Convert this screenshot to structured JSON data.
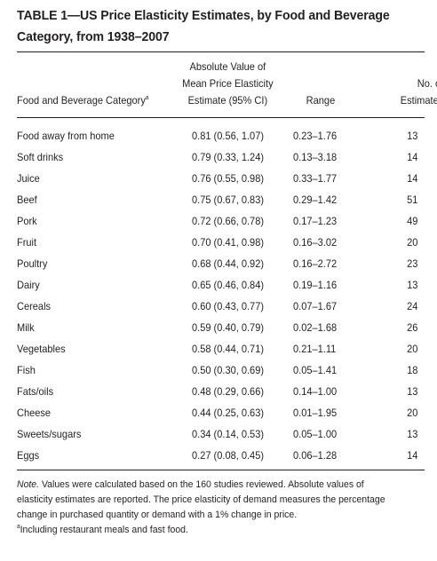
{
  "table": {
    "title_line1": "TABLE 1—US Price Elasticity Estimates, by Food and Beverage",
    "title_line2": "Category, from 1938–2007",
    "headers": {
      "category": "Food and Beverage Category",
      "category_footnote_mark": "a",
      "estimate_line1": "Absolute Value of",
      "estimate_line2": "Mean Price Elasticity",
      "estimate_line3": "Estimate (95% CI)",
      "range": "Range",
      "count_line1": "No. of",
      "count_line2": "Estimates"
    },
    "rows": [
      {
        "category": "Food away from home",
        "estimate": "0.81 (0.56, 1.07)",
        "range": "0.23–1.76",
        "count": "13"
      },
      {
        "category": "Soft drinks",
        "estimate": "0.79 (0.33, 1.24)",
        "range": "0.13–3.18",
        "count": "14"
      },
      {
        "category": "Juice",
        "estimate": "0.76 (0.55, 0.98)",
        "range": "0.33–1.77",
        "count": "14"
      },
      {
        "category": "Beef",
        "estimate": "0.75 (0.67, 0.83)",
        "range": "0.29–1.42",
        "count": "51"
      },
      {
        "category": "Pork",
        "estimate": "0.72 (0.66, 0.78)",
        "range": "0.17–1.23",
        "count": "49"
      },
      {
        "category": "Fruit",
        "estimate": "0.70 (0.41, 0.98)",
        "range": "0.16–3.02",
        "count": "20"
      },
      {
        "category": "Poultry",
        "estimate": "0.68 (0.44, 0.92)",
        "range": "0.16–2.72",
        "count": "23"
      },
      {
        "category": "Dairy",
        "estimate": "0.65 (0.46, 0.84)",
        "range": "0.19–1.16",
        "count": "13"
      },
      {
        "category": "Cereals",
        "estimate": "0.60 (0.43, 0.77)",
        "range": "0.07–1.67",
        "count": "24"
      },
      {
        "category": "Milk",
        "estimate": "0.59 (0.40, 0.79)",
        "range": "0.02–1.68",
        "count": "26"
      },
      {
        "category": "Vegetables",
        "estimate": "0.58 (0.44, 0.71)",
        "range": "0.21–1.11",
        "count": "20"
      },
      {
        "category": "Fish",
        "estimate": "0.50 (0.30, 0.69)",
        "range": "0.05–1.41",
        "count": "18"
      },
      {
        "category": "Fats/oils",
        "estimate": "0.48 (0.29, 0.66)",
        "range": "0.14–1.00",
        "count": "13"
      },
      {
        "category": "Cheese",
        "estimate": "0.44 (0.25, 0.63)",
        "range": "0.01–1.95",
        "count": "20"
      },
      {
        "category": "Sweets/sugars",
        "estimate": "0.34 (0.14, 0.53)",
        "range": "0.05–1.00",
        "count": "13"
      },
      {
        "category": "Eggs",
        "estimate": "0.27 (0.08, 0.45)",
        "range": "0.06–1.28",
        "count": "14"
      }
    ],
    "note": {
      "label": "Note.",
      "line1": " Values were calculated based on the 160 studies reviewed. Absolute values of",
      "line2": "elasticity estimates are reported. The price elasticity of demand measures the percentage",
      "line3": "change in purchased quantity or demand with a 1% change in price.",
      "footnote_mark": "a",
      "footnote_text": "Including restaurant meals and fast food."
    }
  },
  "colors": {
    "text": "#231f20",
    "background": "#ffffff"
  }
}
